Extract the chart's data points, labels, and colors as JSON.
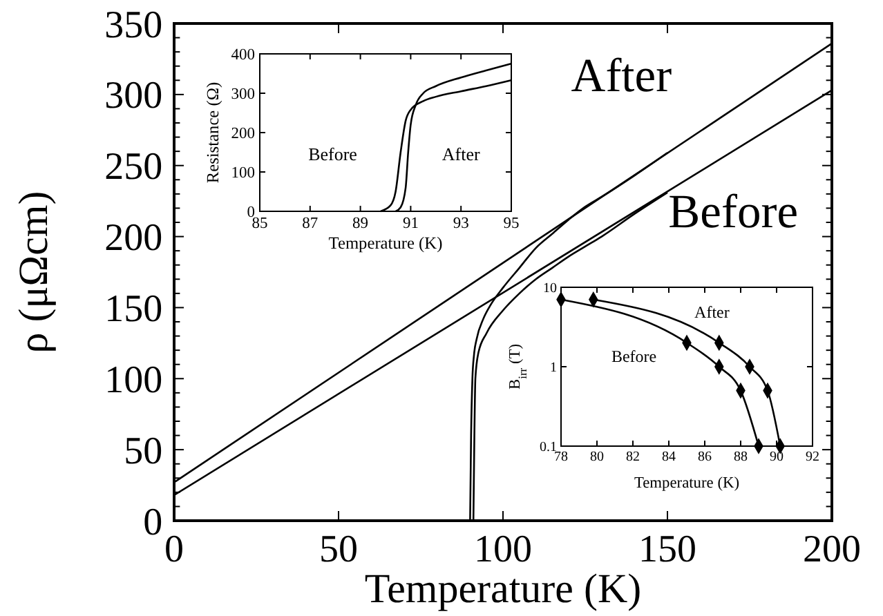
{
  "chart_data": [
    {
      "type": "line",
      "xlabel": "Temperature (K)",
      "ylabel": "ρ (μΩcm)",
      "xlim": [
        0,
        200
      ],
      "ylim": [
        0,
        350
      ],
      "xticks": [
        0,
        50,
        100,
        150,
        200
      ],
      "yticks": [
        0,
        {
          "value": 10,
          "label": null
        },
        {
          "value": 20,
          "label": null
        },
        {
          "value": 30,
          "label": null
        },
        {
          "value": 40,
          "label": null
        },
        50,
        {
          "value": 60,
          "label": null
        },
        {
          "value": 70,
          "label": null
        },
        {
          "value": 80,
          "label": null
        },
        {
          "value": 90,
          "label": null
        },
        100,
        {
          "value": 110,
          "label": null
        },
        {
          "value": 120,
          "label": null
        },
        {
          "value": 130,
          "label": null
        },
        {
          "value": 140,
          "label": null
        },
        150,
        {
          "value": 160,
          "label": null
        },
        {
          "value": 170,
          "label": null
        },
        {
          "value": 180,
          "label": null
        },
        {
          "value": 190,
          "label": null
        },
        200,
        {
          "value": 210,
          "label": null
        },
        {
          "value": 220,
          "label": null
        },
        {
          "value": 230,
          "label": null
        },
        {
          "value": 240,
          "label": null
        },
        250,
        {
          "value": 260,
          "label": null
        },
        {
          "value": 270,
          "label": null
        },
        {
          "value": 280,
          "label": null
        },
        {
          "value": 290,
          "label": null
        },
        300,
        {
          "value": 310,
          "label": null
        },
        {
          "value": 320,
          "label": null
        },
        {
          "value": 330,
          "label": null
        },
        {
          "value": 340,
          "label": null
        },
        350
      ],
      "series": [
        {
          "color": "#000000",
          "x": [
            0,
            200
          ],
          "values": [
            27,
            336
          ]
        },
        {
          "color": "#000000",
          "x": [
            0,
            200
          ],
          "values": [
            18,
            303
          ]
        },
        {
          "color": "#000000",
          "x": [
            90,
            90.3,
            90.7,
            91.2,
            92,
            94,
            96,
            100,
            105,
            110,
            115,
            120,
            125,
            130,
            140,
            150
          ],
          "values": [
            0,
            60,
            100,
            117,
            128,
            142,
            151,
            164,
            178,
            192,
            202,
            212,
            221,
            228,
            243,
            259
          ]
        },
        {
          "color": "#000000",
          "x": [
            91,
            91.3,
            91.6,
            92.5,
            95,
            100,
            105,
            110,
            115,
            120,
            125,
            130,
            140,
            150
          ],
          "values": [
            0,
            60,
            100,
            118,
            132,
            148,
            160,
            170,
            178,
            186,
            193,
            200,
            216,
            231
          ]
        }
      ],
      "annotations": [
        "After",
        "Before"
      ]
    },
    {
      "type": "line",
      "xlabel": "Temperature (K)",
      "ylabel": "Resistance (Ω)",
      "xlim": [
        85,
        95
      ],
      "ylim": [
        0,
        400
      ],
      "xticks": [
        85,
        87,
        89,
        91,
        93,
        95
      ],
      "yticks": [
        0,
        100,
        200,
        300,
        400
      ],
      "series": [
        {
          "color": "#000000",
          "x": [
            89.8,
            90.2,
            90.4,
            90.6,
            90.8,
            91,
            91.5,
            92,
            93,
            94,
            95
          ],
          "values": [
            0,
            15,
            50,
            150,
            230,
            258,
            280,
            291,
            305,
            318,
            333
          ]
        },
        {
          "color": "#000000",
          "x": [
            90.4,
            90.6,
            90.8,
            90.9,
            91,
            91.2,
            91.5,
            92,
            93,
            94,
            95
          ],
          "values": [
            0,
            10,
            60,
            150,
            220,
            270,
            300,
            318,
            340,
            358,
            375
          ]
        }
      ],
      "annotations": [
        "Before",
        "After"
      ]
    },
    {
      "type": "line",
      "xlabel": "Temperature (K)",
      "ylabel": "B$_{irr}$ (T)",
      "log": "y",
      "marker": "diamond",
      "xlim": [
        78,
        92
      ],
      "ylim": [
        0.1,
        10
      ],
      "xticks": [
        78,
        80,
        82,
        84,
        86,
        88,
        90,
        92
      ],
      "yticks": [
        0.1,
        1,
        10
      ],
      "series": [
        {
          "color": "#000000",
          "x": [
            79.8,
            86.8,
            88.5,
            89.5,
            90.2
          ],
          "values": [
            7,
            2,
            1,
            0.5,
            0.1
          ]
        },
        {
          "color": "#000000",
          "x": [
            78,
            85,
            86.8,
            88,
            89
          ],
          "values": [
            7,
            2,
            1,
            0.5,
            0.1
          ]
        }
      ],
      "annotations": [
        "After",
        "Before"
      ]
    }
  ]
}
